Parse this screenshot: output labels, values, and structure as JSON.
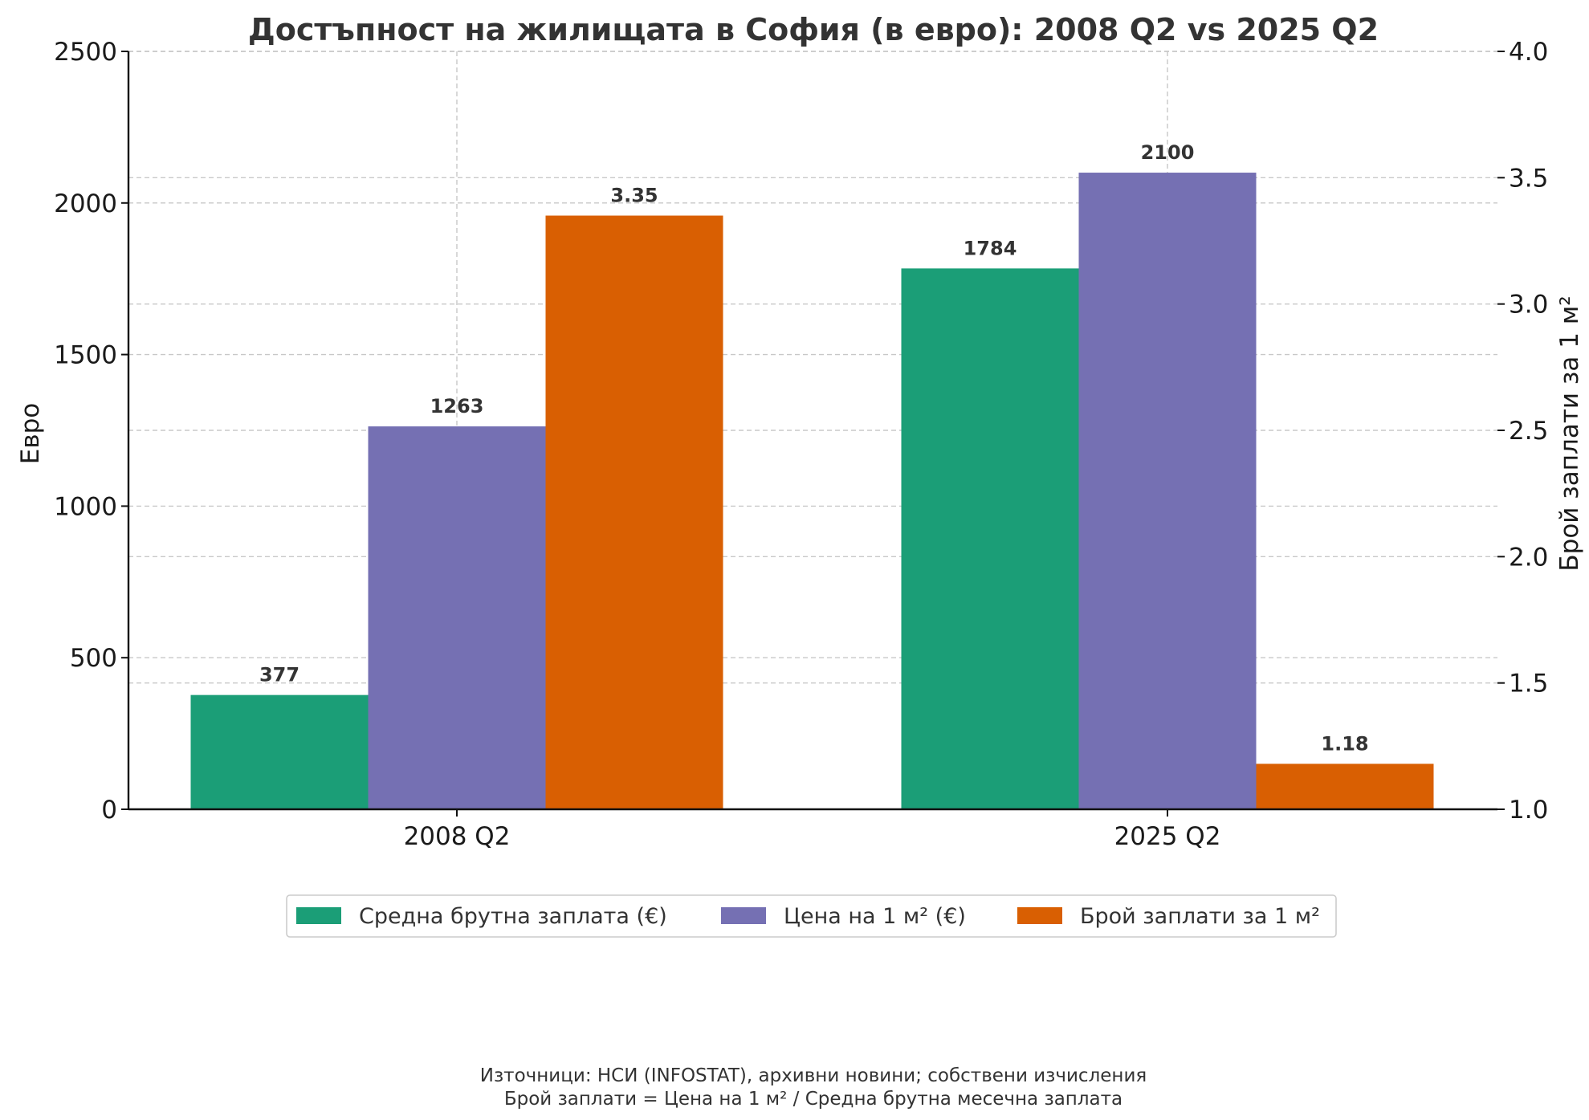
{
  "chart_data": {
    "type": "bar",
    "title": "Достъпност на жилищата в София (в евро): 2008 Q2 vs 2025 Q2",
    "categories": [
      "2008 Q2",
      "2025 Q2"
    ],
    "ylabel": "Евро",
    "ylabel_right": "Брой заплати за 1 м²",
    "ylim": [
      0,
      2500
    ],
    "ylim_right": [
      1.0,
      4.0
    ],
    "yticks": [
      "0",
      "500",
      "1000",
      "1500",
      "2000",
      "2500"
    ],
    "yticks_right": [
      "1.0",
      "1.5",
      "2.0",
      "2.5",
      "3.0",
      "3.5",
      "4.0"
    ],
    "grid": true,
    "legend_position": "bottom-center",
    "series": [
      {
        "name": "Средна брутна заплата (€)",
        "axis": "left",
        "color": "#1b9e77",
        "values": [
          377,
          1784
        ],
        "labels": [
          "377",
          "1784"
        ]
      },
      {
        "name": "Цена на 1 м² (€)",
        "axis": "left",
        "color": "#7570b3",
        "values": [
          1263,
          2100
        ],
        "labels": [
          "1263",
          "2100"
        ]
      },
      {
        "name": "Брой заплати за 1 м²",
        "axis": "right",
        "color": "#d95f02",
        "values": [
          3.35,
          1.18
        ],
        "labels": [
          "3.35",
          "1.18"
        ]
      }
    ],
    "footnote": [
      "Източници: НСИ (INFOSTAT), архивни новини; собствени изчисления",
      "Брой заплати = Цена на 1 м² / Средна брутна месечна заплата"
    ]
  }
}
